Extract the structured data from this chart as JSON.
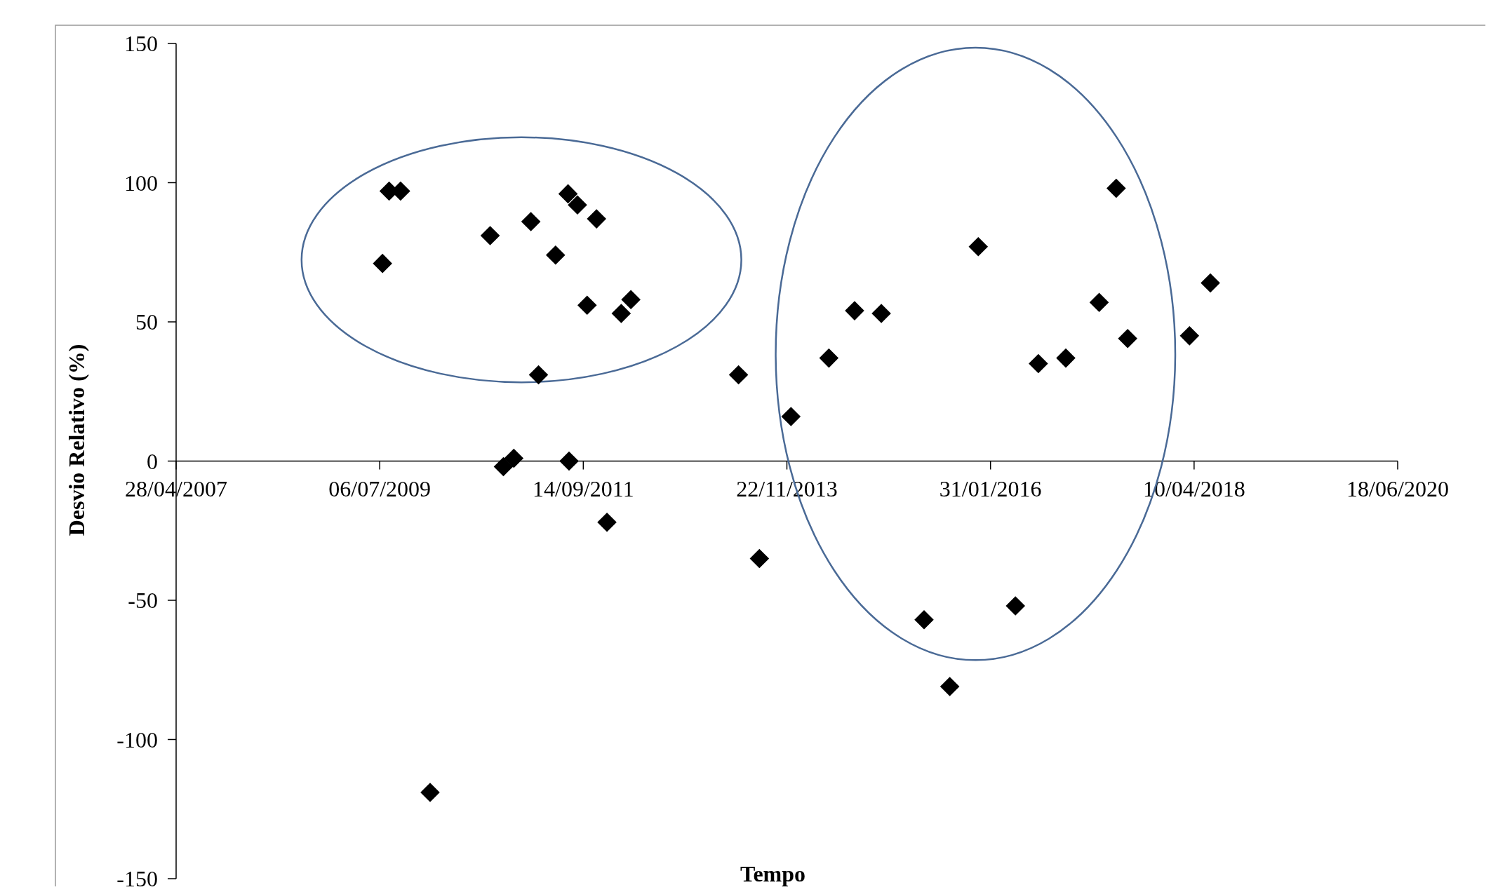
{
  "chart_data": {
    "type": "scatter",
    "xlabel": "Tempo",
    "ylabel": "Desvio Relativo (%)",
    "marker": "diamond",
    "grid": false,
    "xlim": [
      "2007-04-28",
      "2020-06-18"
    ],
    "xticks": [
      {
        "value": "2007-04-28",
        "label": "28/04/2007"
      },
      {
        "value": "2009-07-06",
        "label": "06/07/2009"
      },
      {
        "value": "2011-09-14",
        "label": "14/09/2011"
      },
      {
        "value": "2013-11-22",
        "label": "22/11/2013"
      },
      {
        "value": "2016-01-31",
        "label": "31/01/2016"
      },
      {
        "value": "2018-04-10",
        "label": "10/04/2018"
      },
      {
        "value": "2020-06-18",
        "label": "18/06/2020"
      }
    ],
    "ylim": [
      -150,
      150
    ],
    "yticks": [
      -150,
      -100,
      -50,
      0,
      50,
      100,
      150
    ],
    "series": [
      {
        "color": "#000000",
        "x": [
          "2009-07-17",
          "2009-08-12",
          "2009-09-26",
          "2010-01-20",
          "2010-09-13",
          "2010-11-04",
          "2010-12-15",
          "2011-02-20",
          "2011-03-22",
          "2011-05-28",
          "2011-07-16",
          "2011-07-20",
          "2011-08-22",
          "2011-09-29",
          "2011-11-05",
          "2011-12-16",
          "2012-02-10",
          "2012-03-19",
          "2013-05-16",
          "2013-08-06",
          "2013-12-08",
          "2014-05-06",
          "2014-08-15",
          "2014-11-28",
          "2015-05-15",
          "2015-08-24",
          "2015-12-14",
          "2016-05-08",
          "2016-08-06",
          "2016-11-22",
          "2017-04-02",
          "2017-06-08",
          "2017-07-23",
          "2018-03-23",
          "2018-06-13"
        ],
        "values": [
          71,
          97,
          97,
          -119,
          81,
          -2,
          1,
          86,
          31,
          74,
          96,
          0,
          92,
          56,
          87,
          -22,
          53,
          58,
          31,
          -35,
          16,
          37,
          54,
          53,
          -57,
          -81,
          77,
          -52,
          35,
          37,
          57,
          98,
          44,
          45,
          64
        ]
      }
    ]
  }
}
